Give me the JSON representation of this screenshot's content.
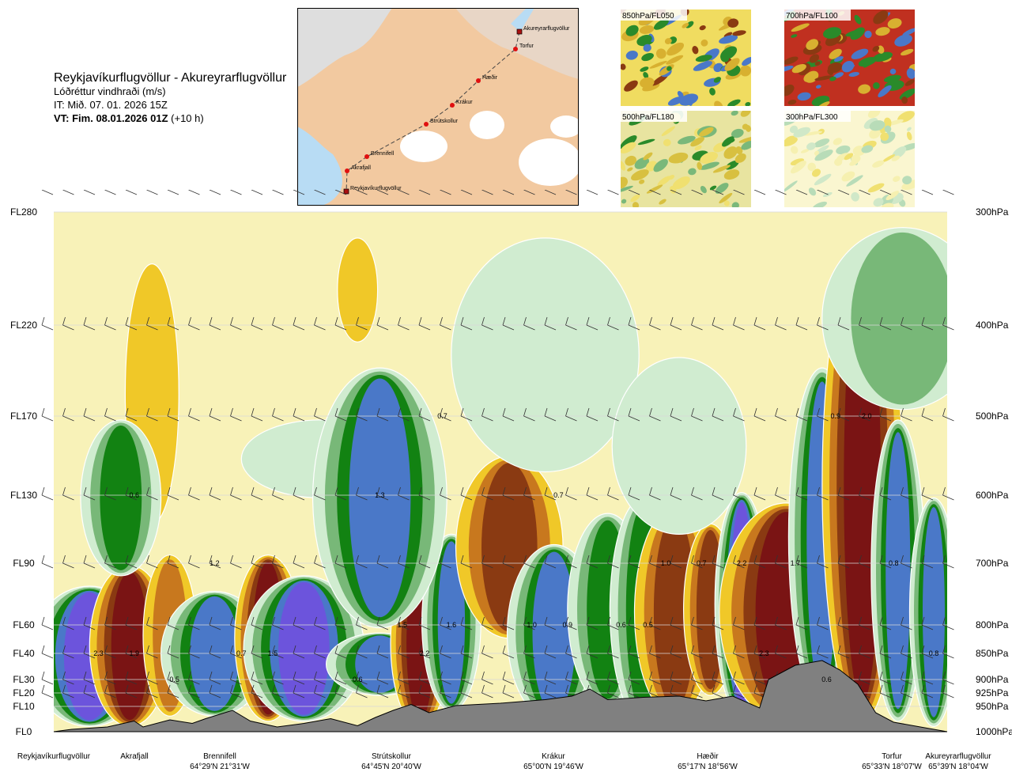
{
  "header": {
    "route": "Reykjavíkurflugvöllur - Akureyrarflugvöllur",
    "variable": "Lóðréttur vindhraði (m/s)",
    "issue_time": "IT: Mið. 07. 01. 2026 15Z",
    "valid_label": "VT: Fim. 08.01.2026 01Z",
    "valid_offset": "(+10 h)"
  },
  "map": {
    "points": [
      {
        "name": "Akureyrarflugvöllur",
        "type": "airport"
      },
      {
        "name": "Torfur",
        "type": "waypoint"
      },
      {
        "name": "Hæðir",
        "type": "waypoint"
      },
      {
        "name": "Krákur",
        "type": "waypoint"
      },
      {
        "name": "Strútskollur",
        "type": "waypoint"
      },
      {
        "name": "Brennifell",
        "type": "waypoint"
      },
      {
        "name": "Akrafjall",
        "type": "waypoint"
      },
      {
        "name": "Reykjavíkurflugvöllur",
        "type": "airport"
      }
    ]
  },
  "thumbnails": [
    {
      "label": "850hPa/FL050"
    },
    {
      "label": "700hPa/FL100"
    },
    {
      "label": "500hPa/FL180"
    },
    {
      "label": "300hPa/FL300"
    }
  ],
  "chart_data": {
    "type": "heatmap",
    "flight_levels": [
      "FL280",
      "FL220",
      "FL170",
      "FL130",
      "FL90",
      "FL60",
      "FL40",
      "FL30",
      "FL20",
      "FL10",
      "FL0"
    ],
    "pressure_levels": [
      "300hPa",
      "400hPa",
      "500hPa",
      "600hPa",
      "700hPa",
      "800hPa",
      "850hPa",
      "900hPa",
      "925hPa",
      "950hPa",
      "1000hPa"
    ],
    "waypoints": [
      {
        "name": "Reykjavíkurflugvöllur",
        "coord": ""
      },
      {
        "name": "Akrafjall",
        "coord": ""
      },
      {
        "name": "Brennifell",
        "coord": "64°29'N 21°31'W"
      },
      {
        "name": "Strútskollur",
        "coord": "64°45'N 20°40'W"
      },
      {
        "name": "Krákur",
        "coord": "65°00'N 19°46'W"
      },
      {
        "name": "Hæðir",
        "coord": "65°17'N 18°56'W"
      },
      {
        "name": "Torfur",
        "coord": "65°33'N 18°07'W"
      },
      {
        "name": "Akureyrarflugvöllur",
        "coord": "65°39'N 18°04'W"
      }
    ],
    "value_labels": [
      {
        "text": "0.6",
        "dist": 0.09,
        "level": "FL130"
      },
      {
        "text": "2.3",
        "dist": 0.05,
        "level": "FL40"
      },
      {
        "text": "1.9",
        "dist": 0.09,
        "level": "FL40"
      },
      {
        "text": "0.5",
        "dist": 0.135,
        "level": "FL30"
      },
      {
        "text": "1.2",
        "dist": 0.18,
        "level": "FL90"
      },
      {
        "text": "0.7",
        "dist": 0.21,
        "level": "FL40"
      },
      {
        "text": "1.5",
        "dist": 0.245,
        "level": "FL40"
      },
      {
        "text": "1.3",
        "dist": 0.365,
        "level": "FL130"
      },
      {
        "text": "0.6",
        "dist": 0.34,
        "level": "FL30"
      },
      {
        "text": "1.5",
        "dist": 0.39,
        "level": "FL60"
      },
      {
        "text": "0.7",
        "dist": 0.435,
        "level": "FL170"
      },
      {
        "text": "2.2",
        "dist": 0.415,
        "level": "FL40"
      },
      {
        "text": "1.6",
        "dist": 0.445,
        "level": "FL60"
      },
      {
        "text": "0.7",
        "dist": 0.565,
        "level": "FL130"
      },
      {
        "text": "1.0",
        "dist": 0.535,
        "level": "FL60"
      },
      {
        "text": "0.9",
        "dist": 0.575,
        "level": "FL60"
      },
      {
        "text": "0.6",
        "dist": 0.635,
        "level": "FL60"
      },
      {
        "text": "0.5",
        "dist": 0.665,
        "level": "FL60"
      },
      {
        "text": "1.0",
        "dist": 0.685,
        "level": "FL90"
      },
      {
        "text": "0.7",
        "dist": 0.725,
        "level": "FL90"
      },
      {
        "text": "2.2",
        "dist": 0.77,
        "level": "FL90"
      },
      {
        "text": "1.7",
        "dist": 0.83,
        "level": "FL90"
      },
      {
        "text": "2.3",
        "dist": 0.795,
        "level": "FL40"
      },
      {
        "text": "0.6",
        "dist": 0.865,
        "level": "FL30"
      },
      {
        "text": "0.9",
        "dist": 0.875,
        "level": "FL170"
      },
      {
        "text": "2.0",
        "dist": 0.91,
        "level": "FL170"
      },
      {
        "text": "0.8",
        "dist": 0.94,
        "level": "FL90"
      },
      {
        "text": "0.8",
        "dist": 0.985,
        "level": "FL40"
      }
    ],
    "colors": {
      "strong_down": "#7a1414",
      "down": "#8a3a12",
      "weak_down": "#c8781e",
      "slight_down": "#f0c828",
      "neutral": "#f8f2b8",
      "slight_up": "#d0ecd0",
      "weak_up": "#78b878",
      "up": "#128212",
      "strong_up": "#4a78c8",
      "very_strong_up": "#6c54dc",
      "terrain": "#808080"
    }
  }
}
